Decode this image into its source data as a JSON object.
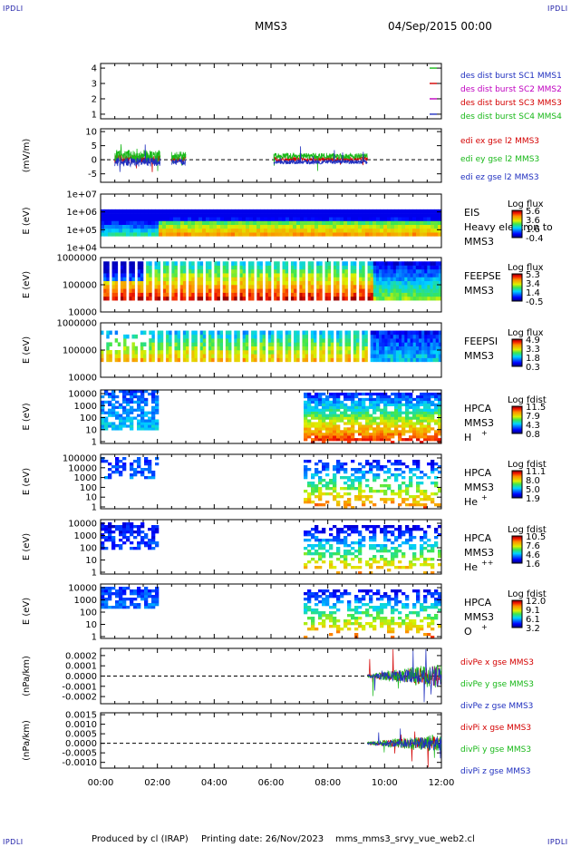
{
  "header": {
    "corner_label": "IPDLI",
    "spacecraft": "MMS3",
    "datetime": "04/Sep/2015 00:00"
  },
  "footer": {
    "produced_by": "Produced by cl (IRAP)",
    "printing_date": "Printing date: 26/Nov/2023",
    "script_name": "mms_mms3_srvy_vue_web2.cl"
  },
  "chart_data": {
    "type": "multi-panel time series",
    "x": {
      "ticks": [
        "00:00",
        "02:00",
        "04:00",
        "06:00",
        "08:00",
        "10:00",
        "12:00"
      ],
      "range_hours": [
        0,
        12
      ]
    },
    "panels": [
      {
        "id": "burst",
        "type": "line",
        "yticks": [
          "1",
          "2",
          "3",
          "4"
        ],
        "ylim": [
          0.7,
          4.3
        ],
        "series": [
          {
            "name": "des dist burst SC1 MMS1",
            "color": "#1f2fbf",
            "level": 1
          },
          {
            "name": "des dist burst SC2 MMS2",
            "color": "#c000c0",
            "level": 2
          },
          {
            "name": "des dist burst SC3 MMS3",
            "color": "#d40000",
            "level": 3
          },
          {
            "name": "des dist burst SC4 MMS4",
            "color": "#18b818",
            "level": 4
          }
        ]
      },
      {
        "id": "edp",
        "type": "line",
        "ylabel": "(mV/m)",
        "yticks": [
          "-5",
          "0",
          "5",
          "10"
        ],
        "ylim": [
          -8,
          11
        ],
        "series": [
          {
            "name": "edi ex gse l2 MMS3",
            "color": "#d40000"
          },
          {
            "name": "edi ey gse l2 MMS3",
            "color": "#18b818"
          },
          {
            "name": "edi ez gse l2 MMS3",
            "color": "#1f2fbf"
          }
        ]
      },
      {
        "id": "eis",
        "type": "heatmap",
        "ylabel": "E (eV)",
        "yticks": [
          "1e+04",
          "1e+05",
          "1e+06",
          "1e+07"
        ],
        "labels": [
          "EIS",
          "Heavy electron to",
          "MMS3"
        ],
        "colorbar": {
          "title": "Log flux",
          "ticks": [
            "5.6",
            "3.6",
            "1.6",
            "-0.4"
          ]
        }
      },
      {
        "id": "feepse",
        "type": "heatmap",
        "ylabel": "E (eV)",
        "yticks": [
          "10000",
          "100000",
          "1000000"
        ],
        "labels": [
          "FEEPSE",
          "MMS3"
        ],
        "colorbar": {
          "title": "Log flux",
          "ticks": [
            "5.3",
            "3.4",
            "1.4",
            "-0.5"
          ]
        }
      },
      {
        "id": "feepsi",
        "type": "heatmap",
        "ylabel": "E (eV)",
        "yticks": [
          "10000",
          "100000",
          "1000000"
        ],
        "labels": [
          "FEEPSI",
          "MMS3"
        ],
        "colorbar": {
          "title": "Log flux",
          "ticks": [
            "4.9",
            "3.3",
            "1.8",
            "0.3"
          ]
        }
      },
      {
        "id": "hpca_h",
        "type": "heatmap",
        "ylabel": "E (eV)",
        "yticks": [
          "1",
          "10",
          "100",
          "1000",
          "10000"
        ],
        "labels": [
          "HPCA",
          "MMS3",
          "H"
        ],
        "species_sup": "+",
        "colorbar": {
          "title": "Log fdist",
          "ticks": [
            "11.5",
            "7.9",
            "4.3",
            "0.8"
          ]
        }
      },
      {
        "id": "hpca_he",
        "type": "heatmap",
        "ylabel": "E (eV)",
        "yticks": [
          "1",
          "10",
          "100",
          "1000",
          "10000",
          "100000"
        ],
        "labels": [
          "HPCA",
          "MMS3",
          "He"
        ],
        "species_sup": "+",
        "colorbar": {
          "title": "Log fdist",
          "ticks": [
            "11.1",
            "8.0",
            "5.0",
            "1.9"
          ]
        }
      },
      {
        "id": "hpca_hepp",
        "type": "heatmap",
        "ylabel": "E (eV)",
        "yticks": [
          "1",
          "10",
          "100",
          "1000",
          "10000"
        ],
        "labels": [
          "HPCA",
          "MMS3",
          "He"
        ],
        "species_sup": "++",
        "colorbar": {
          "title": "Log fdist",
          "ticks": [
            "10.5",
            "7.6",
            "4.6",
            "1.6"
          ]
        }
      },
      {
        "id": "hpca_o",
        "type": "heatmap",
        "ylabel": "E (eV)",
        "yticks": [
          "1",
          "10",
          "100",
          "1000",
          "10000"
        ],
        "labels": [
          "HPCA",
          "MMS3",
          "O"
        ],
        "species_sup": "+",
        "colorbar": {
          "title": "Log fdist",
          "ticks": [
            "12.0",
            "9.1",
            "6.1",
            "3.2"
          ]
        }
      },
      {
        "id": "divpe",
        "type": "line",
        "ylabel": "(nPa/km)",
        "yticks": [
          "-0.0002",
          "-0.0001",
          "0.0000",
          "0.0001",
          "0.0002"
        ],
        "ylim": [
          -0.00027,
          0.00027
        ],
        "series": [
          {
            "name": "divPe x gse MMS3",
            "color": "#d40000"
          },
          {
            "name": "divPe y gse MMS3",
            "color": "#18b818"
          },
          {
            "name": "divPe z gse MMS3",
            "color": "#1f2fbf"
          }
        ]
      },
      {
        "id": "divpi",
        "type": "line",
        "ylabel": "(nPa/km)",
        "yticks": [
          "-0.0010",
          "-0.0005",
          "0.0000",
          "0.0005",
          "0.0010",
          "0.0015"
        ],
        "ylim": [
          -0.0013,
          0.0016
        ],
        "series": [
          {
            "name": "divPi x gse MMS3",
            "color": "#d40000"
          },
          {
            "name": "divPi y gse MMS3",
            "color": "#18b818"
          },
          {
            "name": "divPi z gse MMS3",
            "color": "#1f2fbf"
          }
        ]
      }
    ]
  }
}
